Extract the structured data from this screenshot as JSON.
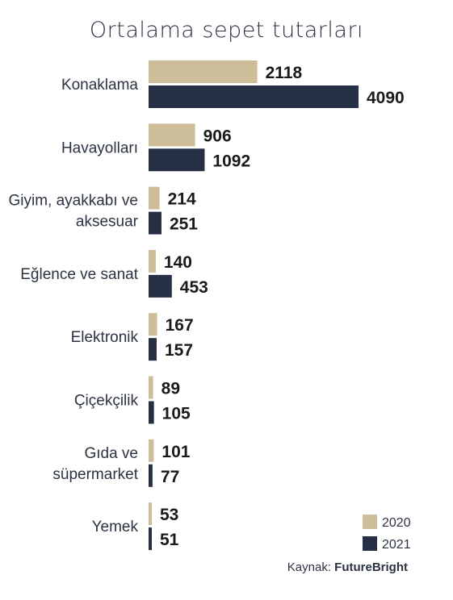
{
  "chart_data": {
    "type": "bar",
    "orientation": "horizontal",
    "title": "Ortalama sepet tutarları",
    "categories": [
      [
        "Konaklama"
      ],
      [
        "Havayolları"
      ],
      [
        "Giyim, ayakkabı ve",
        "aksesuar"
      ],
      [
        "Eğlence ve sanat"
      ],
      [
        "Elektronik"
      ],
      [
        "Çiçekçilik"
      ],
      [
        "Gıda ve",
        "süpermarket"
      ],
      [
        "Yemek"
      ]
    ],
    "series": [
      {
        "name": "2020",
        "color": "#cdbd98",
        "values": [
          2118,
          906,
          214,
          140,
          167,
          89,
          101,
          53
        ]
      },
      {
        "name": "2021",
        "color": "#263044",
        "values": [
          4090,
          1092,
          251,
          453,
          157,
          105,
          77,
          51
        ]
      }
    ],
    "xlim": [
      0,
      4090
    ],
    "grid": false,
    "legend_position": "bottom-right"
  },
  "source": {
    "label": "Kaynak:",
    "name": "FutureBright"
  }
}
